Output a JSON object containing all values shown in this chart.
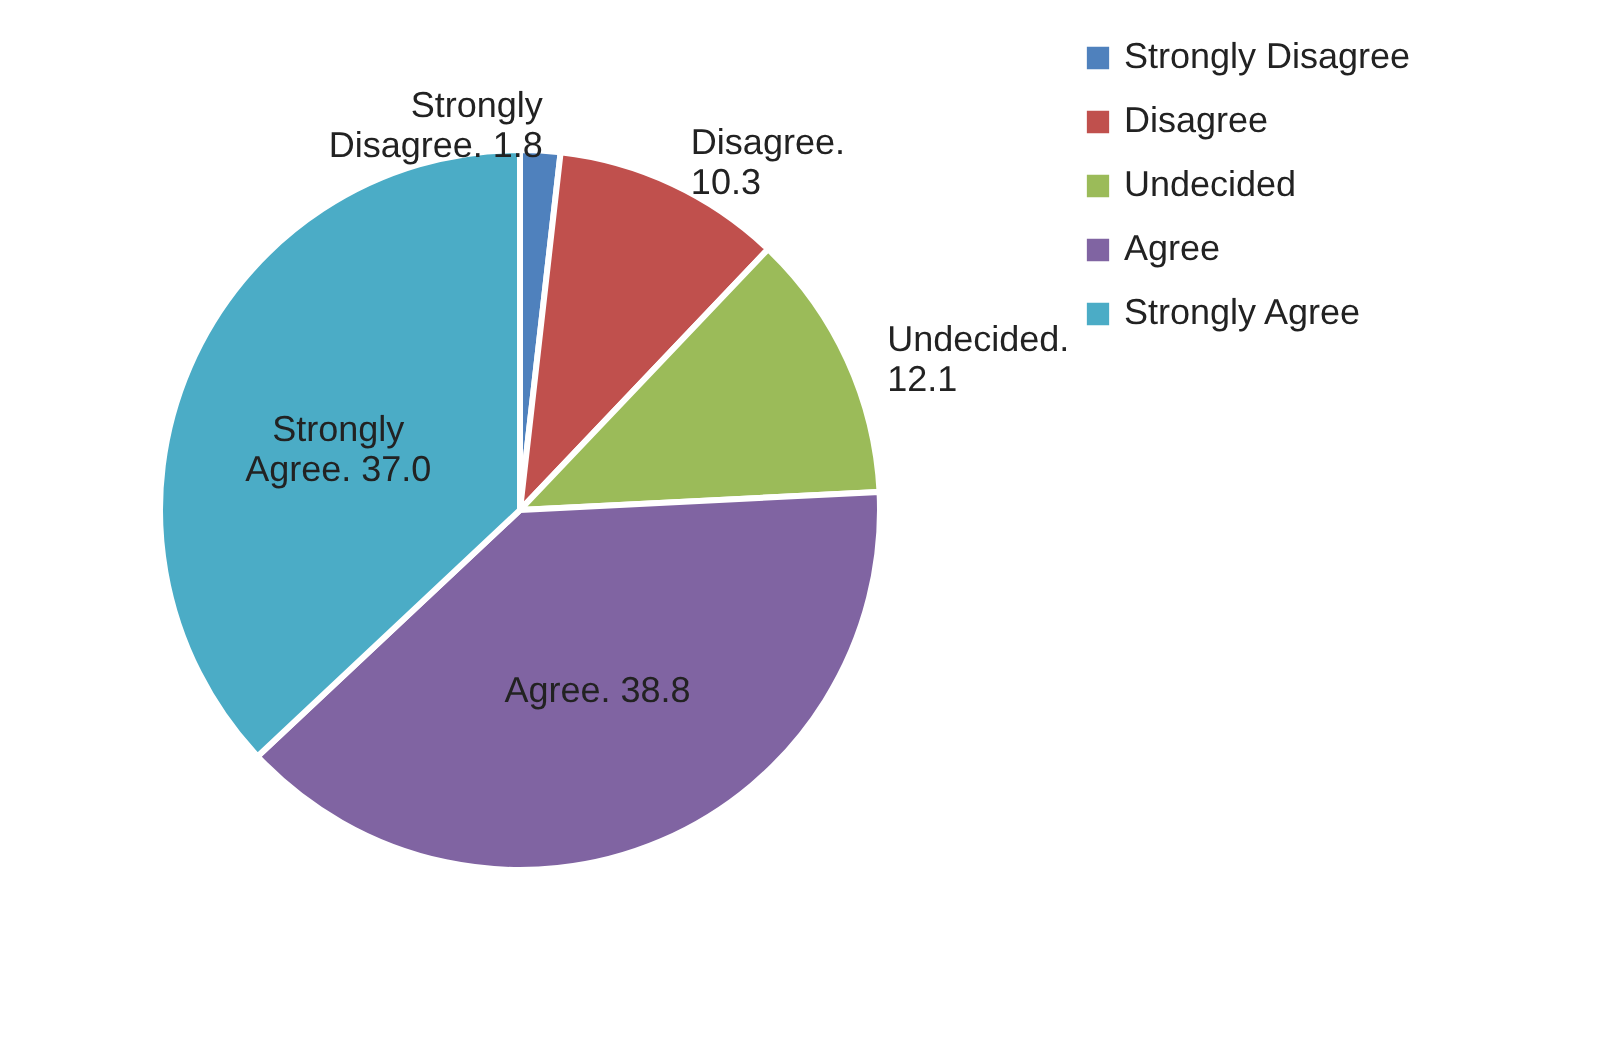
{
  "chart_data": {
    "type": "pie",
    "categories": [
      "Strongly Disagree",
      "Disagree",
      "Undecided",
      "Agree",
      "Strongly Agree"
    ],
    "values": [
      1.8,
      10.3,
      12.1,
      38.8,
      37.0
    ],
    "value_labels": [
      "Strongly Disagree. 1.8",
      "Disagree. 10.3",
      "Undecided. 12.1",
      "Agree. 38.8",
      "Strongly Agree. 37.0"
    ],
    "colors": [
      "#4f81bd",
      "#c0504d",
      "#9bbb59",
      "#8064a2",
      "#4bacc6"
    ],
    "legend": "right"
  }
}
